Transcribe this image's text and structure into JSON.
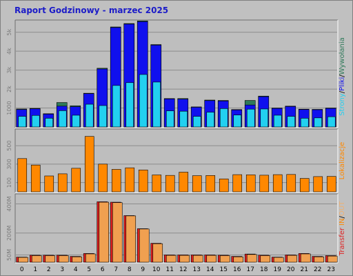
{
  "title": "Raport Godzinowy -  marzec 2025",
  "colors": {
    "background": "#c0c0c0",
    "panel": "#bebebe",
    "grid": "#8c8c8c",
    "hits": "#2f7a5a",
    "files": "#1010ee",
    "pages": "#22d0f0",
    "visits": "#ff8800",
    "tx_in": "#ff2020",
    "tx_out": "#f0a050",
    "title": "#1c1cc8"
  },
  "chart_data": [
    {
      "type": "bar",
      "categories": [
        "0",
        "1",
        "2",
        "3",
        "4",
        "5",
        "6",
        "7",
        "8",
        "9",
        "10",
        "11",
        "12",
        "13",
        "14",
        "15",
        "16",
        "17",
        "18",
        "19",
        "20",
        "21",
        "22",
        "23"
      ],
      "ylim": [
        0,
        5500
      ],
      "yticks": [
        {
          "value": 1000,
          "label": "1000"
        },
        {
          "value": 2000,
          "label": "2k"
        },
        {
          "value": 3000,
          "label": "3k"
        },
        {
          "value": 4000,
          "label": "4k"
        },
        {
          "value": 5000,
          "label": "5k"
        }
      ],
      "legend": [
        {
          "label": "Strony",
          "color": "#22d0f0"
        },
        {
          "label": "/",
          "color": "#000000"
        },
        {
          "label": "Pliki",
          "color": "#1010ee"
        },
        {
          "label": "/",
          "color": "#000000"
        },
        {
          "label": "Wywołania",
          "color": "#2f7a5a"
        }
      ],
      "series": [
        {
          "values": [
            950,
            980,
            700,
            1290,
            1120,
            1780,
            3100,
            5280,
            5460,
            5600,
            4350,
            1500,
            1500,
            1060,
            1420,
            1400,
            920,
            1400,
            1630,
            1000,
            1100,
            940,
            930,
            1000
          ],
          "color": "#2f7a5a"
        },
        {
          "values": [
            920,
            960,
            680,
            1100,
            1070,
            1760,
            3060,
            5250,
            5430,
            5560,
            4320,
            1480,
            1470,
            1040,
            1390,
            1370,
            900,
            1160,
            1600,
            980,
            1080,
            920,
            910,
            980
          ],
          "color": "#1010ee"
        },
        {
          "values": [
            560,
            610,
            460,
            860,
            620,
            1200,
            1130,
            2190,
            2340,
            2770,
            2370,
            850,
            830,
            560,
            780,
            970,
            630,
            940,
            950,
            620,
            560,
            460,
            480,
            540
          ],
          "color": "#22d0f0"
        }
      ]
    },
    {
      "type": "bar",
      "categories": [
        "0",
        "1",
        "2",
        "3",
        "4",
        "5",
        "6",
        "7",
        "8",
        "9",
        "10",
        "11",
        "12",
        "13",
        "14",
        "15",
        "16",
        "17",
        "18",
        "19",
        "20",
        "21",
        "22",
        "23"
      ],
      "ylim": [
        0,
        650
      ],
      "yticks": [
        {
          "value": 100,
          "label": "100"
        },
        {
          "value": 300,
          "label": "300"
        },
        {
          "value": 500,
          "label": "500"
        }
      ],
      "legend": [
        {
          "label": "Lokalizacje",
          "color": "#ff8800"
        }
      ],
      "series": [
        {
          "values": [
            360,
            290,
            172,
            195,
            255,
            600,
            300,
            243,
            260,
            237,
            183,
            178,
            213,
            175,
            177,
            140,
            186,
            184,
            180,
            186,
            188,
            145,
            165,
            167
          ],
          "color": "#ff8800"
        }
      ]
    },
    {
      "type": "bar",
      "categories": [
        "0",
        "1",
        "2",
        "3",
        "4",
        "5",
        "6",
        "7",
        "8",
        "9",
        "10",
        "11",
        "12",
        "13",
        "14",
        "15",
        "16",
        "17",
        "18",
        "19",
        "20",
        "21",
        "22",
        "23"
      ],
      "ylim": [
        0,
        450
      ],
      "yticks": [
        {
          "value": 50,
          "label": "50M"
        },
        {
          "value": 200,
          "label": "200M"
        },
        {
          "value": 400,
          "label": "400M"
        }
      ],
      "legend": [
        {
          "label": "Transfer",
          "color": "#e02020"
        },
        {
          "label": "IN",
          "color": "#ff8800"
        },
        {
          "label": "/",
          "color": "#000000"
        },
        {
          "label": "OUT",
          "color": "#f0b070"
        }
      ],
      "series": [
        {
          "values": [
            35,
            48,
            48,
            48,
            40,
            60,
            415,
            412,
            320,
            230,
            130,
            50,
            50,
            50,
            50,
            48,
            40,
            56,
            48,
            35,
            50,
            60,
            40,
            45
          ],
          "color": "#e02020"
        },
        {
          "values": [
            33,
            45,
            45,
            45,
            37,
            57,
            412,
            409,
            318,
            228,
            127,
            47,
            47,
            47,
            47,
            45,
            37,
            53,
            45,
            33,
            47,
            57,
            37,
            42
          ],
          "color": "#f0a050"
        }
      ]
    }
  ]
}
